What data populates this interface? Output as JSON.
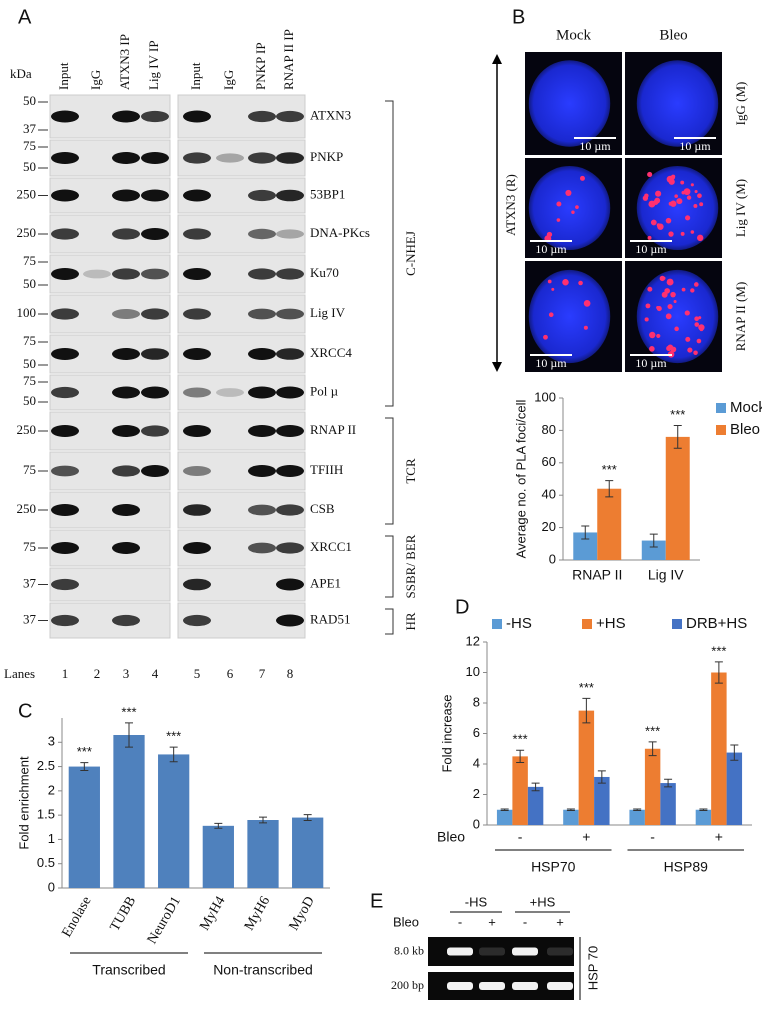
{
  "panel_labels": [
    "A",
    "B",
    "C",
    "D",
    "E"
  ],
  "blot": {
    "kda_label": "kDa",
    "lanes_label": "Lanes",
    "lane_headers": [
      "Input",
      "IgG",
      "ATXN3 IP",
      "Lig IV IP",
      "Input",
      "IgG",
      "PNKP IP",
      "RNAP II IP"
    ],
    "lane_numbers": [
      1,
      2,
      3,
      4,
      5,
      6,
      7,
      8
    ],
    "rows": [
      {
        "protein": "ATXN3",
        "markers": [
          50,
          37
        ]
      },
      {
        "protein": "PNKP",
        "markers": [
          75,
          50
        ]
      },
      {
        "protein": "53BP1",
        "markers": [
          250
        ]
      },
      {
        "protein": "DNA-PKcs",
        "markers": [
          250
        ]
      },
      {
        "protein": "Ku70",
        "markers": [
          75,
          50
        ]
      },
      {
        "protein": "Lig IV",
        "markers": [
          100
        ]
      },
      {
        "protein": "XRCC4",
        "markers": [
          75,
          50
        ]
      },
      {
        "protein": "Pol µ",
        "markers": [
          75,
          50
        ]
      },
      {
        "protein": "RNAP II",
        "markers": [
          250
        ]
      },
      {
        "protein": "TFIIH",
        "markers": [
          75
        ]
      },
      {
        "protein": "CSB",
        "markers": [
          250
        ]
      },
      {
        "protein": "XRCC1",
        "markers": [
          75
        ]
      },
      {
        "protein": "APE1",
        "markers": [
          37
        ]
      },
      {
        "protein": "RAD51",
        "markers": [
          37
        ]
      }
    ],
    "groups": [
      {
        "label": "C-NHEJ"
      },
      {
        "label": "TCR"
      },
      {
        "label": "SSBR/ BER"
      },
      {
        "label": "HR"
      }
    ]
  },
  "microscopy": {
    "columns": [
      "Mock",
      "Bleo"
    ],
    "rows": [
      "IgG (M)",
      "Lig IV (M)",
      "RNAP II (M)"
    ],
    "side_label": "ATXN3 (R)",
    "scale_bar": "10 µm"
  },
  "chart_data": [
    {
      "type": "bar",
      "y_label": "Average no. of PLA foci/cell",
      "categories": [
        "RNAP II",
        "Lig IV"
      ],
      "series": [
        {
          "name": "Mock",
          "color": "#5b9bd5",
          "values": [
            17,
            12
          ],
          "errors": [
            4,
            4
          ]
        },
        {
          "name": "Bleo",
          "color": "#ed7d31",
          "values": [
            44,
            76
          ],
          "errors": [
            5,
            7
          ],
          "significance": [
            "***",
            "***"
          ]
        }
      ],
      "ylim": [
        0,
        100
      ],
      "yticks": [
        0,
        20,
        40,
        60,
        80,
        100
      ],
      "legend": "right"
    },
    {
      "type": "bar",
      "y_label": "Fold enrichment",
      "categories": [
        "Enolase",
        "TUBB",
        "NeuroD1",
        "MyH4",
        "MyH6",
        "MyoD"
      ],
      "values": [
        2.5,
        3.15,
        2.75,
        1.28,
        1.4,
        1.45
      ],
      "errors": [
        0.08,
        0.25,
        0.15,
        0.05,
        0.06,
        0.06
      ],
      "significance": [
        "***",
        "***",
        "***",
        null,
        null,
        null
      ],
      "color": "#4f81bd",
      "ylim": [
        0,
        3.5
      ],
      "yticks": [
        0,
        0.5,
        1,
        1.5,
        2,
        2.5,
        3
      ],
      "groups": [
        {
          "label": "Transcribed"
        },
        {
          "label": "Non-transcribed"
        }
      ]
    },
    {
      "type": "bar",
      "y_label": "Fold increase",
      "x_row_label": "Bleo",
      "categories": [
        "-",
        "+",
        "-",
        "+"
      ],
      "series": [
        {
          "name": "-HS",
          "color": "#5b9bd5",
          "values": [
            1,
            1,
            1,
            1
          ],
          "errors": [
            0.05,
            0.05,
            0.05,
            0.05
          ]
        },
        {
          "name": "+HS",
          "color": "#ed7d31",
          "values": [
            4.5,
            7.5,
            5,
            10
          ],
          "errors": [
            0.4,
            0.8,
            0.45,
            0.7
          ],
          "significance": [
            "***",
            "***",
            "***",
            "***"
          ]
        },
        {
          "name": "DRB+HS",
          "color": "#4472c4",
          "values": [
            2.5,
            3.15,
            2.75,
            4.75
          ],
          "errors": [
            0.25,
            0.4,
            0.25,
            0.5
          ]
        }
      ],
      "ylim": [
        0,
        12
      ],
      "yticks": [
        0,
        2,
        4,
        6,
        8,
        10,
        12
      ],
      "legend": "top",
      "groups": [
        {
          "label": "HSP70"
        },
        {
          "label": "HSP89"
        }
      ]
    }
  ],
  "gel": {
    "conditions": [
      "-HS",
      "+HS"
    ],
    "bleo_label": "Bleo",
    "bleo": [
      "-",
      "+",
      "-",
      "+"
    ],
    "bands": [
      "8.0 kb",
      "200 bp"
    ],
    "gene": "HSP 70"
  }
}
